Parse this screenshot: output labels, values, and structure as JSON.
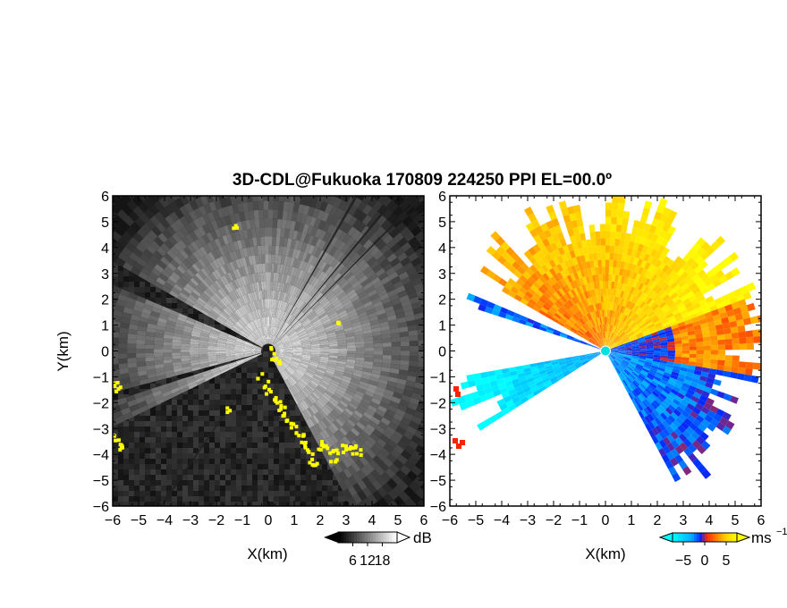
{
  "chart_data": [
    {
      "type": "heatmap",
      "title": "3D-CDL@Fukuoka 170809 224250 PPI EL=00.0º",
      "panel": "left",
      "quantity": "signal intensity",
      "xlabel": "X(km)",
      "ylabel": "Y(km)",
      "xlim": [
        -6,
        6
      ],
      "ylim": [
        -6,
        6
      ],
      "x_ticks": [
        "−6",
        "−5",
        "−4",
        "−3",
        "−2",
        "−1",
        "0",
        "1",
        "2",
        "3",
        "4",
        "5",
        "6"
      ],
      "y_ticks": [
        "6",
        "5",
        "4",
        "3",
        "2",
        "1",
        "0",
        "−1",
        "−2",
        "−3",
        "−4",
        "−5",
        "−6"
      ],
      "colorbar": {
        "colormap": "grayscale",
        "unit": "dB",
        "ticks": [
          "6",
          "12",
          "18"
        ],
        "tick_values": [
          6,
          12,
          18
        ],
        "range": [
          0,
          24
        ]
      },
      "overlay_color": "#ffff00",
      "grid": false
    },
    {
      "type": "heatmap",
      "panel": "right",
      "quantity": "radial velocity",
      "xlabel": "X(km)",
      "xlim": [
        -6,
        6
      ],
      "ylim": [
        -6,
        6
      ],
      "x_ticks": [
        "−6",
        "−5",
        "−4",
        "−3",
        "−2",
        "−1",
        "0",
        "1",
        "2",
        "3",
        "4",
        "5",
        "6"
      ],
      "y_ticks": [
        "6",
        "5",
        "4",
        "3",
        "2",
        "1",
        "0",
        "−1",
        "−2",
        "−3",
        "−4",
        "−5",
        "−6"
      ],
      "colorbar": {
        "colormap": "blue-cyan-red-orange-yellow",
        "unit": "ms",
        "unit_exponent": "−1",
        "ticks": [
          "−5",
          "0",
          "5"
        ],
        "tick_values": [
          -5,
          0,
          5
        ],
        "range": [
          -7.5,
          7.5
        ]
      },
      "grid": false
    }
  ]
}
